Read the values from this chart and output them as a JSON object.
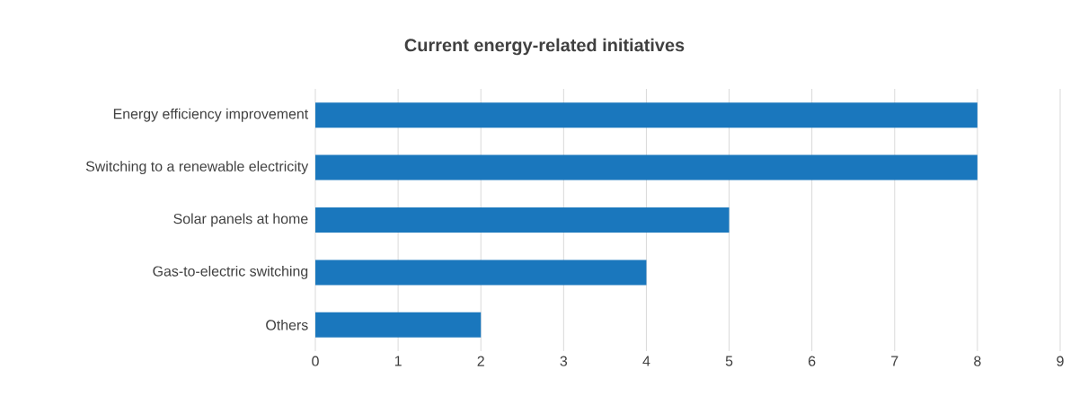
{
  "chart_data": {
    "type": "bar",
    "orientation": "horizontal",
    "title": "Current energy-related initiatives",
    "categories": [
      "Energy efficiency improvement",
      "Switching to a renewable electricity",
      "Solar panels at home",
      "Gas-to-electric switching",
      "Others"
    ],
    "values": [
      8,
      8,
      5,
      4,
      2
    ],
    "color": "#1a77bd",
    "xlim": [
      0,
      9
    ],
    "xticks": [
      0,
      1,
      2,
      3,
      4,
      5,
      6,
      7,
      8,
      9
    ],
    "grid": "x"
  }
}
